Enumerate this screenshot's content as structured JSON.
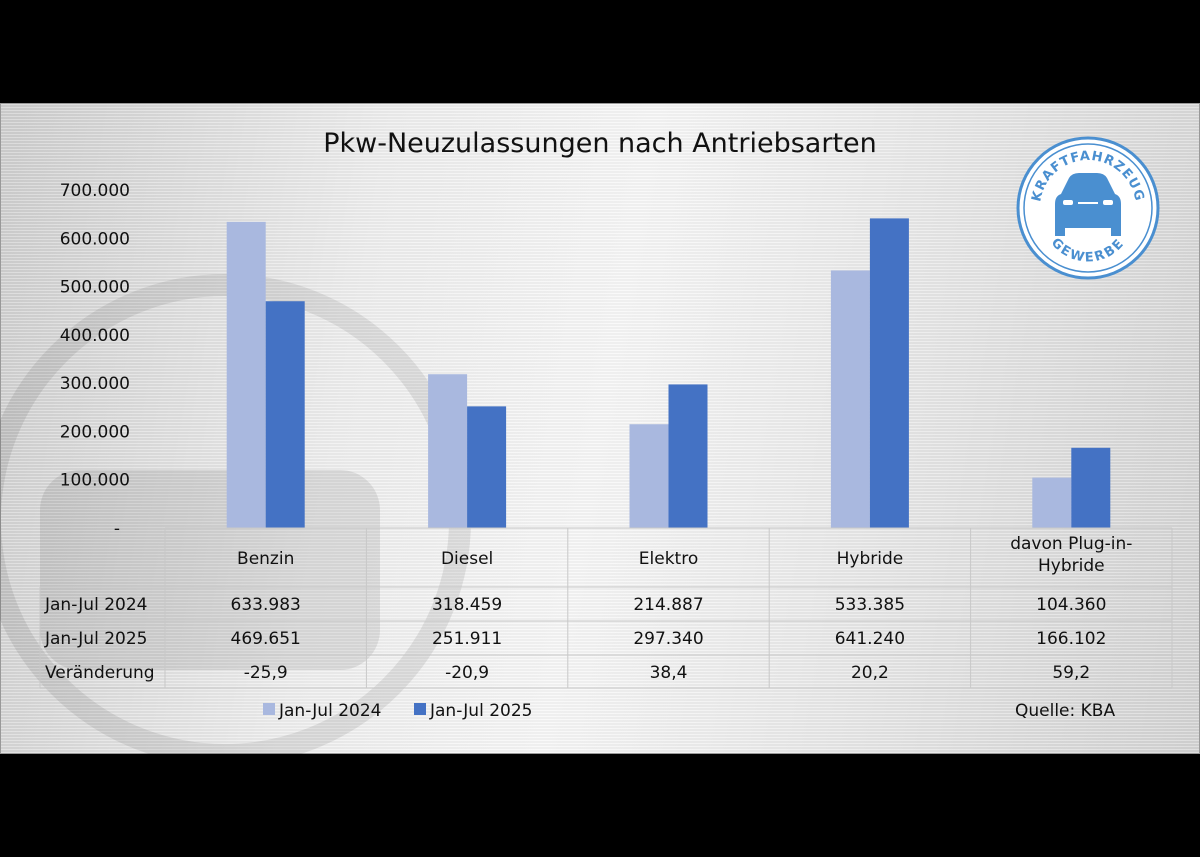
{
  "chart_data": {
    "type": "bar",
    "title": "Pkw-Neuzulassungen nach Antriebsarten",
    "categories": [
      "Benzin",
      "Diesel",
      "Elektro",
      "Hybride",
      "davon Plug-in-Hybride"
    ],
    "category_lines": [
      [
        "Benzin"
      ],
      [
        "Diesel"
      ],
      [
        "Elektro"
      ],
      [
        "Hybride"
      ],
      [
        "davon Plug-in-",
        "Hybride"
      ]
    ],
    "series": [
      {
        "name": "Jan-Jul 2024",
        "color": "#a9b8df",
        "values": [
          633983,
          318459,
          214887,
          533385,
          104360
        ],
        "labels": [
          "633.983",
          "318.459",
          "214.887",
          "533.385",
          "104.360"
        ]
      },
      {
        "name": "Jan-Jul 2025",
        "color": "#4472c4",
        "values": [
          469651,
          251911,
          297340,
          641240,
          166102
        ],
        "labels": [
          "469.651",
          "251.911",
          "297.340",
          "641.240",
          "166.102"
        ]
      }
    ],
    "change_row": {
      "label": "Veränderung",
      "values": [
        "-25,9",
        "-20,9",
        "38,4",
        "20,2",
        "59,2"
      ]
    },
    "ylim": [
      0,
      700000
    ],
    "yticks": [
      0,
      100000,
      200000,
      300000,
      400000,
      500000,
      600000,
      700000
    ],
    "ytick_labels": [
      "-",
      "100.000",
      "200.000",
      "300.000",
      "400.000",
      "500.000",
      "600.000",
      "700.000"
    ],
    "grid": false,
    "legend": "bottom",
    "source": "Quelle: KBA"
  },
  "logo": {
    "top_text": "KRAFTFAHRZEUG",
    "bottom_text": "GEWERBE",
    "color": "#4a8fd0"
  }
}
